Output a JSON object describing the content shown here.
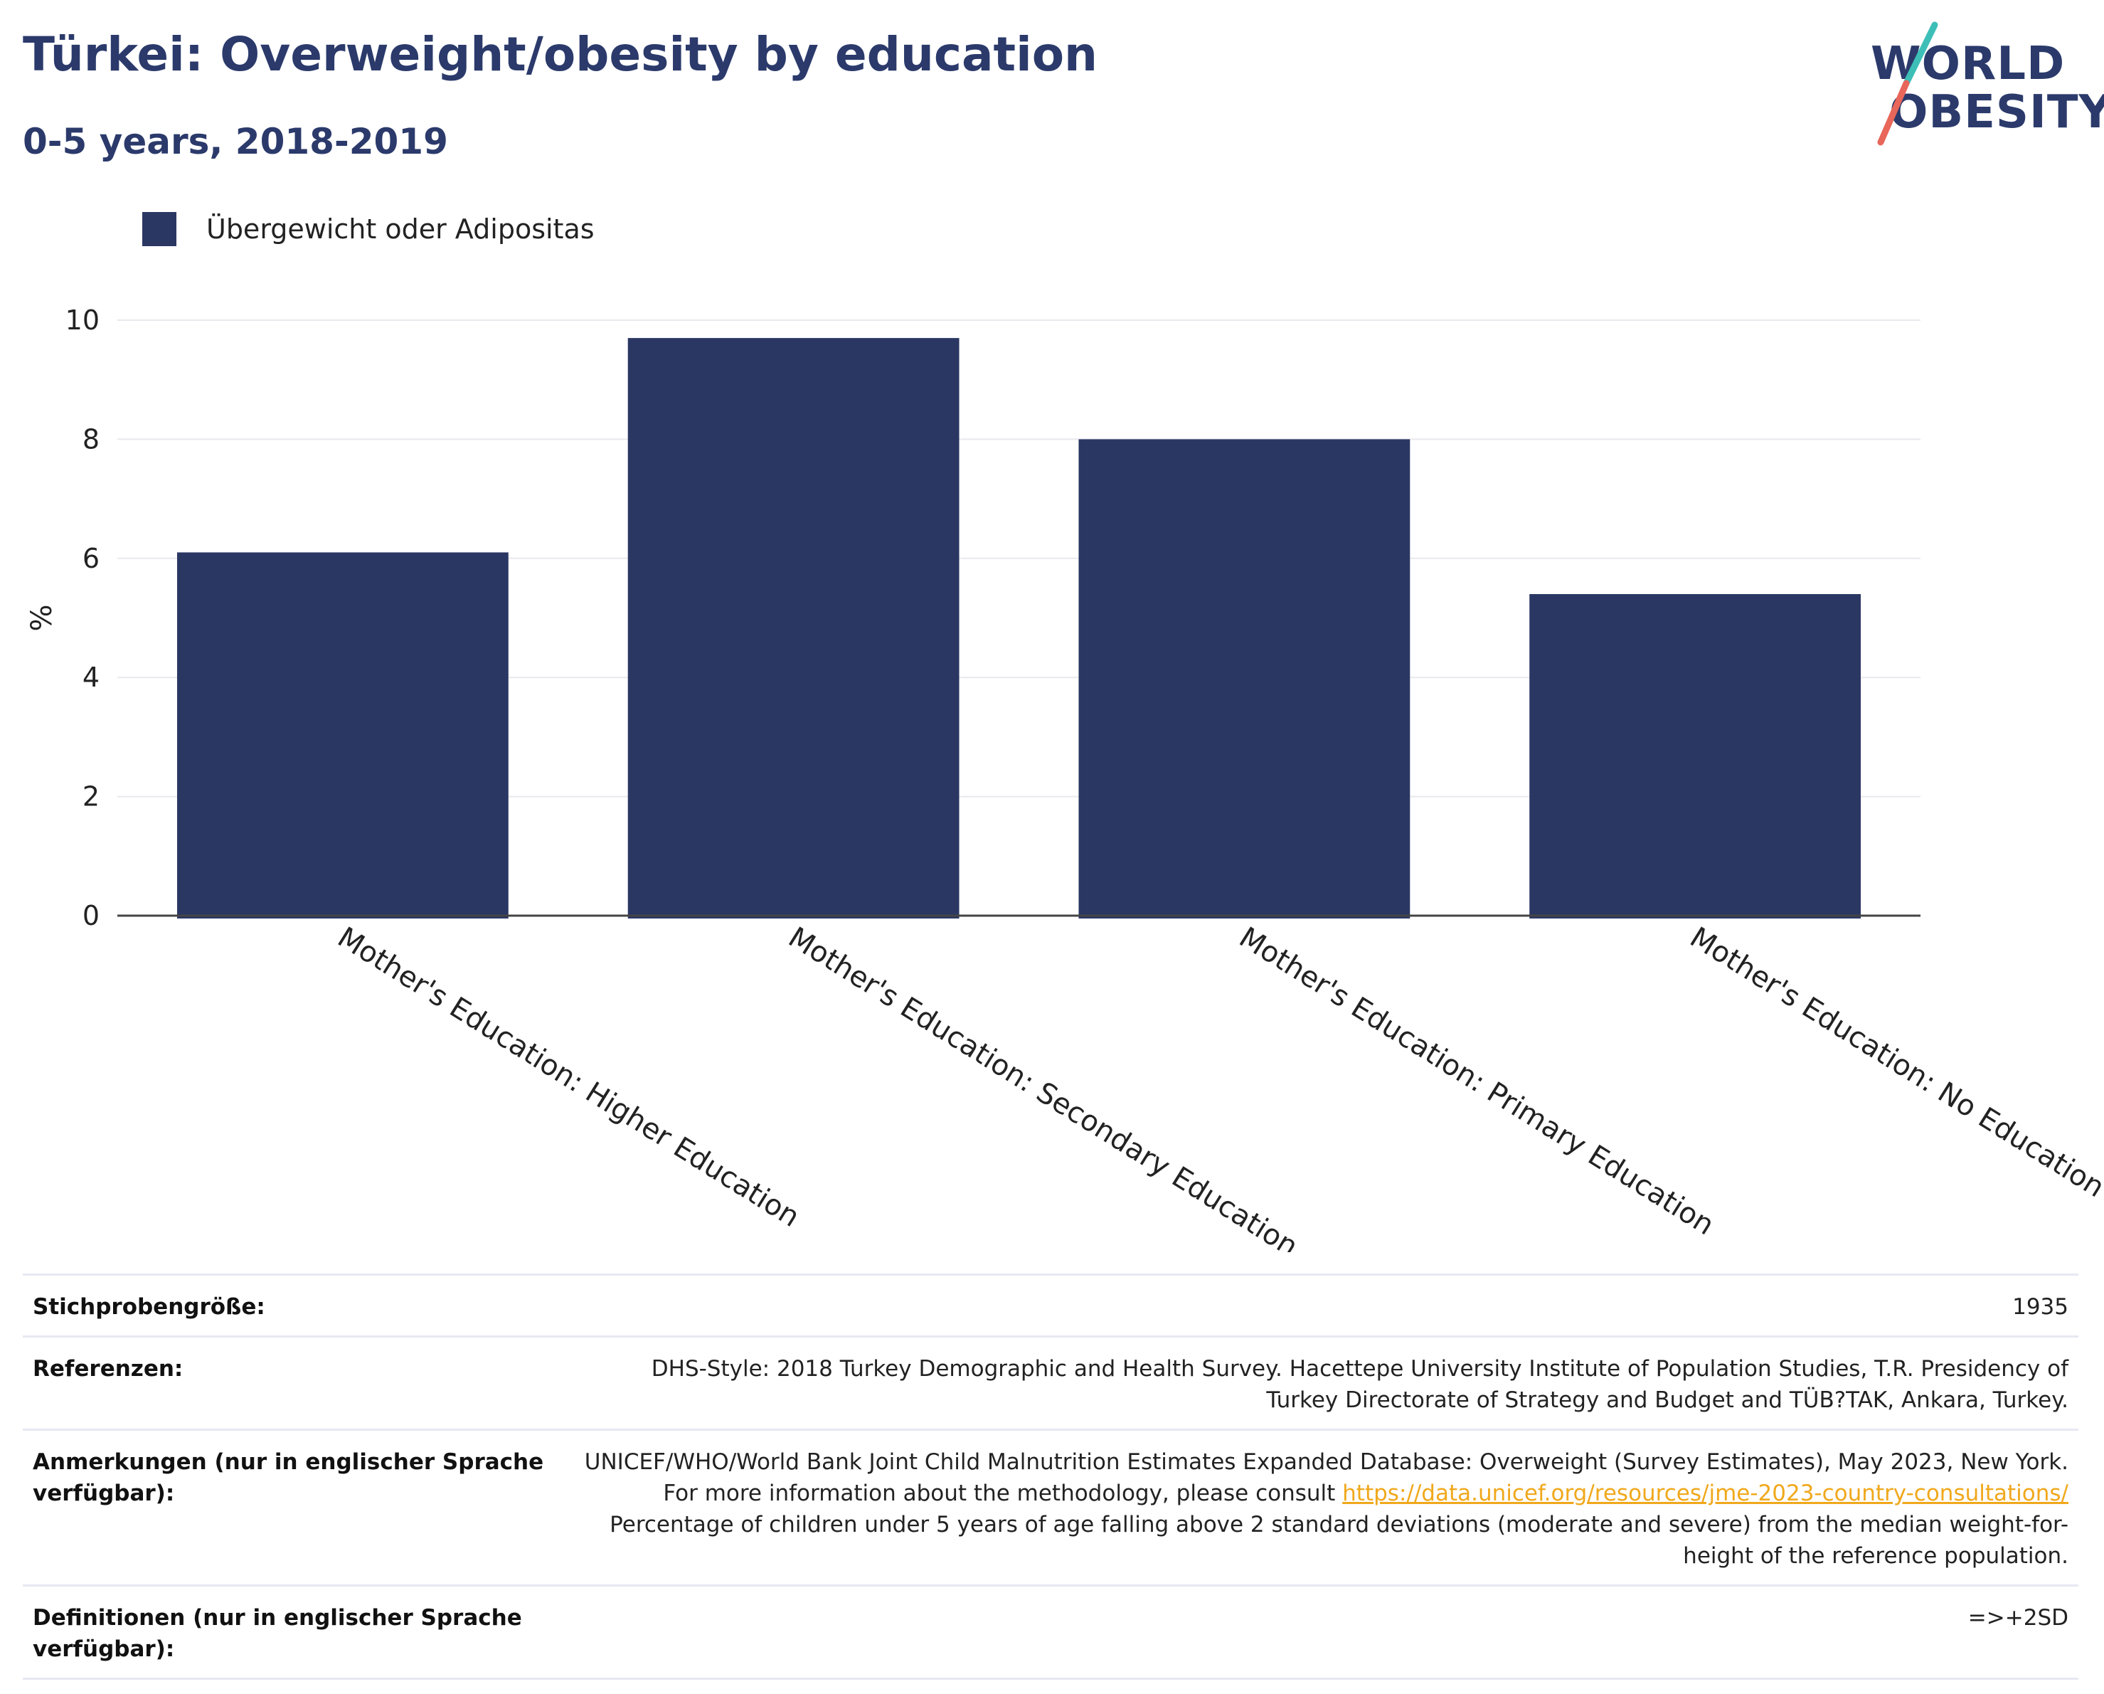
{
  "header": {
    "title": "Türkei: Overweight/obesity by education",
    "subtitle": "0-5 years, 2018-2019"
  },
  "logo": {
    "line1": "WORLD",
    "line2": "OBESITY"
  },
  "colors": {
    "bar": "#2b3763",
    "title": "#2b3a6b",
    "logo_teal": "#3dbfb8",
    "logo_red": "#e8665a",
    "link": "#f0a81c"
  },
  "legend": {
    "label": "Übergewicht oder Adipositas"
  },
  "chart_data": {
    "type": "bar",
    "categories": [
      "Mother's Education: Higher Education",
      "Mother's Education: Secondary Education",
      "Mother's Education: Primary Education",
      "Mother's Education: No Education"
    ],
    "series": [
      {
        "name": "Übergewicht oder Adipositas",
        "values": [
          6.1,
          9.7,
          8.0,
          5.4
        ]
      }
    ],
    "ylabel": "%",
    "ylim": [
      0,
      10
    ],
    "yticks": [
      "0",
      "2",
      "4",
      "6",
      "8",
      "10"
    ],
    "grid": true,
    "legend_position": "top-left"
  },
  "table": {
    "sample_size": {
      "label": "Stichprobengröße:",
      "value": "1935"
    },
    "references": {
      "label": "Referenzen:",
      "value": "DHS-Style: 2018 Turkey Demographic and Health Survey. Hacettepe University Institute of Population Studies, T.R. Presidency of Turkey Directorate of Strategy and Budget and TÜB?TAK, Ankara, Turkey."
    },
    "notes": {
      "label": "Anmerkungen (nur in englischer Sprache verfügbar):",
      "value_before": "UNICEF/WHO/World Bank Joint Child Malnutrition Estimates Expanded Database: Overweight (Survey Estimates), May 2023, New York. For more information about the methodology, please consult ",
      "link": "https://data.unicef.org/resources/jme-2023-country-consultations/",
      "value_after": " Percentage of children under 5 years of age falling above 2 standard deviations (moderate and severe) from the median weight-for-height of the reference population."
    },
    "definitions": {
      "label": "Definitionen (nur in englischer Sprache verfügbar):",
      "value": "=>+2SD"
    }
  }
}
